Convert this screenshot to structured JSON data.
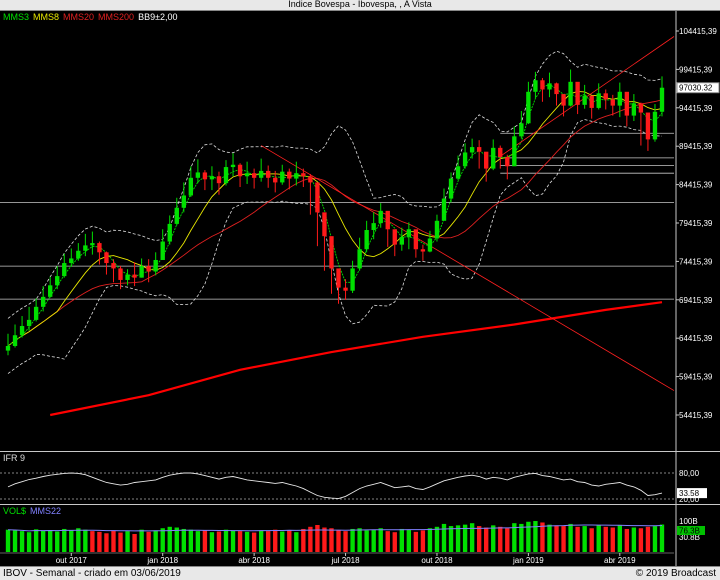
{
  "window": {
    "title": "Indice Bovespa - Ibovespa, , A Vista"
  },
  "legend": [
    {
      "label": "MMS3",
      "color": "#00e000"
    },
    {
      "label": "MMS8",
      "color": "#e8e800"
    },
    {
      "label": "MMS20",
      "color": "#e02020"
    },
    {
      "label": "MMS200",
      "color": "#e02020"
    },
    {
      "label": "BB9±2,00",
      "color": "#ffffff"
    }
  ],
  "ifr": {
    "label": "IFR 9",
    "ticks": [
      "80,00",
      "20,00"
    ],
    "current": "33.58",
    "current_value": 33.58
  },
  "volume": {
    "labels": [
      {
        "text": "VOL$",
        "color": "#00e000"
      },
      {
        "text": "MMS22",
        "color": "#8080ff"
      }
    ],
    "ticks": [
      "100B",
      "30.8B"
    ],
    "current": "76.3B"
  },
  "footer": {
    "left": "IBOV - Semanal - criado em 03/06/2019",
    "right": "© 2019 Broadcast"
  },
  "chart_data": {
    "type": "candlestick",
    "title": "Indice Bovespa - Ibovespa, , A Vista",
    "y_ticks": [
      104415.39,
      99415.39,
      94415.39,
      89415.39,
      84415.39,
      79415.39,
      74415.39,
      69415.39,
      64415.39,
      59415.39,
      54415.39
    ],
    "y_tick_labels": [
      "104415,39",
      "99415,39",
      "94415,39",
      "89415,39",
      "84415,39",
      "79415,39",
      "74415,39",
      "69415,39",
      "64415,39",
      "59415,39",
      "54415,39"
    ],
    "ylim": [
      51000,
      107000
    ],
    "x_tick_labels": [
      "out 2017",
      "jan 2018",
      "abr 2018",
      "jul 2018",
      "out 2018",
      "jan 2019",
      "abr 2019"
    ],
    "x_tick_index": [
      9,
      22,
      35,
      48,
      61,
      74,
      87
    ],
    "current_price": 97030.32,
    "current_price_label": "97030.32",
    "close": [
      63400,
      64800,
      66000,
      66800,
      68500,
      69800,
      71300,
      72500,
      74200,
      74800,
      75800,
      76500,
      76800,
      75600,
      74200,
      73500,
      72000,
      72700,
      72300,
      73800,
      73100,
      74600,
      77000,
      79300,
      81400,
      83000,
      85300,
      86000,
      85100,
      85500,
      84600,
      86700,
      87000,
      85500,
      85900,
      85300,
      86200,
      85300,
      84700,
      86100,
      85200,
      85900,
      85500,
      84700,
      80800,
      77700,
      73500,
      71000,
      70600,
      73500,
      76000,
      78500,
      79400,
      81000,
      78600,
      76600,
      77600,
      78600,
      76000,
      75700,
      77400,
      79700,
      82600,
      85200,
      86800,
      88600,
      89300,
      88700,
      86500,
      89200,
      88000,
      86800,
      90700,
      92400,
      96500,
      98000,
      96800,
      97600,
      96200,
      94700,
      97800,
      94800,
      96000,
      94400,
      96300,
      95500,
      94700,
      96500,
      93400,
      95000,
      93800,
      90300,
      93900,
      97030
    ],
    "high": [
      65000,
      66200,
      67300,
      68500,
      69600,
      71200,
      72400,
      73800,
      75400,
      76100,
      76800,
      78000,
      78300,
      77000,
      75700,
      74700,
      73800,
      73400,
      74300,
      74800,
      74700,
      75600,
      78600,
      80400,
      82700,
      84700,
      86800,
      87700,
      86300,
      86800,
      86100,
      87600,
      88500,
      87200,
      87400,
      86500,
      87800,
      86900,
      86200,
      87000,
      86500,
      87400,
      86500,
      85800,
      82200,
      78800,
      74900,
      72700,
      72100,
      74500,
      77500,
      79700,
      80800,
      82000,
      80100,
      77600,
      78800,
      79500,
      77300,
      76600,
      78400,
      80500,
      83900,
      86000,
      88200,
      89800,
      90400,
      90200,
      87800,
      90300,
      89500,
      88300,
      92000,
      94000,
      97800,
      99100,
      98300,
      99000,
      97700,
      95800,
      99400,
      96200,
      97400,
      95800,
      97600,
      96800,
      96100,
      97700,
      94800,
      96200,
      95100,
      92000,
      94900,
      98500
    ],
    "low": [
      62200,
      63200,
      64500,
      65400,
      66600,
      67900,
      69700,
      70800,
      72300,
      73700,
      74500,
      75100,
      75300,
      74000,
      72700,
      71700,
      70800,
      71300,
      71200,
      72300,
      71700,
      72600,
      75100,
      76600,
      79100,
      80800,
      82800,
      84600,
      83700,
      83700,
      83100,
      84300,
      85500,
      84100,
      84500,
      83900,
      84800,
      84000,
      83400,
      84400,
      83800,
      84300,
      84100,
      80500,
      76400,
      73200,
      70200,
      68900,
      69400,
      70300,
      73200,
      75600,
      77300,
      78800,
      76300,
      75100,
      75800,
      76000,
      74900,
      74500,
      75600,
      77000,
      80300,
      82100,
      85000,
      86500,
      87800,
      86500,
      84800,
      86300,
      86500,
      85100,
      88300,
      90400,
      92300,
      95700,
      95200,
      95800,
      94700,
      93300,
      94600,
      93600,
      94300,
      93000,
      94200,
      94200,
      93400,
      93200,
      92000,
      92700,
      89500,
      88800,
      90000,
      93300
    ],
    "series": [
      {
        "name": "MMS200",
        "color": "#ff0000",
        "x": [
          6,
          20,
          33,
          46,
          59,
          72,
          85,
          93
        ],
        "y": [
          54415,
          57000,
          60300,
          62600,
          64600,
          66200,
          68100,
          69100
        ]
      }
    ],
    "trendlines": [
      {
        "x": [
          36,
          100
        ],
        "y": [
          89500,
          57600
        ]
      },
      {
        "x": [
          70,
          100
        ],
        "y": [
          88100,
          103700
        ]
      }
    ],
    "hlines": [
      82100,
      73800,
      69500,
      91100,
      87900,
      86900,
      85900
    ],
    "ifr_values": [
      48,
      55,
      60,
      65,
      68,
      72,
      75,
      77,
      79,
      80,
      79,
      76,
      70,
      64,
      58,
      55,
      52,
      54,
      58,
      60,
      62,
      64,
      70,
      75,
      78,
      80,
      80,
      78,
      74,
      70,
      66,
      70,
      72,
      68,
      64,
      62,
      60,
      58,
      56,
      58,
      54,
      50,
      44,
      36,
      28,
      24,
      22,
      21,
      26,
      35,
      44,
      50,
      54,
      58,
      52,
      46,
      48,
      50,
      44,
      42,
      48,
      55,
      62,
      66,
      70,
      73,
      75,
      72,
      66,
      70,
      68,
      64,
      70,
      74,
      78,
      79,
      74,
      72,
      68,
      64,
      66,
      60,
      58,
      52,
      50,
      54,
      56,
      58,
      52,
      48,
      40,
      28,
      30,
      33.58
    ],
    "volume_values": [
      62,
      60,
      58,
      55,
      63,
      59,
      61,
      57,
      64,
      60,
      66,
      62,
      58,
      56,
      52,
      60,
      54,
      58,
      50,
      62,
      56,
      60,
      66,
      70,
      68,
      64,
      62,
      58,
      60,
      55,
      57,
      62,
      60,
      58,
      56,
      54,
      60,
      58,
      62,
      57,
      60,
      55,
      64,
      70,
      75,
      68,
      66,
      60,
      58,
      64,
      66,
      60,
      62,
      66,
      58,
      55,
      64,
      62,
      56,
      60,
      66,
      70,
      78,
      72,
      74,
      76,
      80,
      72,
      68,
      74,
      70,
      66,
      80,
      78,
      84,
      86,
      82,
      76,
      74,
      72,
      78,
      70,
      72,
      66,
      74,
      70,
      68,
      74,
      64,
      68,
      66,
      70,
      72,
      76.3
    ],
    "volume_up": [
      true,
      true,
      true,
      true,
      true,
      true,
      true,
      true,
      true,
      true,
      true,
      true,
      false,
      false,
      false,
      false,
      false,
      true,
      false,
      true,
      false,
      true,
      true,
      true,
      true,
      true,
      true,
      true,
      false,
      true,
      false,
      true,
      true,
      false,
      true,
      false,
      true,
      false,
      false,
      true,
      false,
      true,
      false,
      false,
      false,
      false,
      false,
      false,
      false,
      true,
      true,
      true,
      true,
      true,
      false,
      false,
      true,
      true,
      false,
      false,
      true,
      true,
      true,
      true,
      true,
      true,
      true,
      false,
      false,
      true,
      false,
      false,
      true,
      true,
      true,
      true,
      false,
      true,
      false,
      false,
      true,
      false,
      true,
      false,
      true,
      false,
      false,
      true,
      false,
      true,
      false,
      false,
      true,
      true
    ]
  }
}
